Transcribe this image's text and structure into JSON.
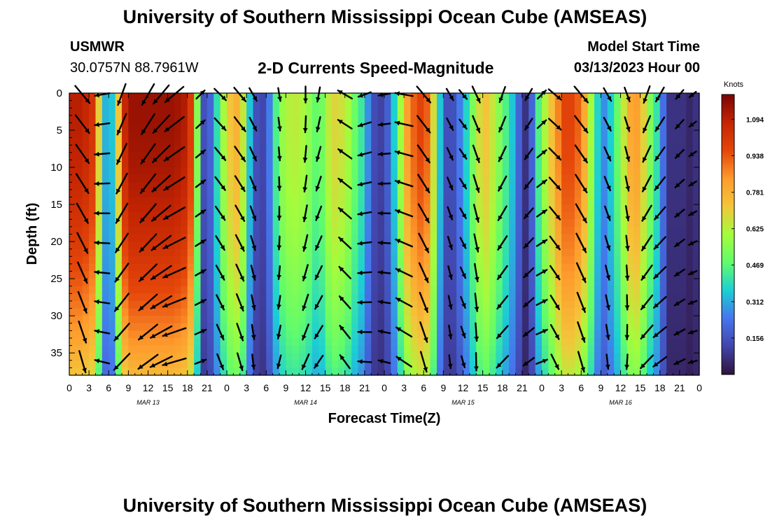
{
  "header": {
    "title": "University of Southern Mississippi Ocean Cube (AMSEAS)",
    "station": "USMWR",
    "coords": "30.0757N  88.7961W",
    "plot_title": "2-D Currents Speed-Magnitude",
    "start_label": "Model Start Time",
    "start_value": "03/13/2023 Hour 00"
  },
  "footer": {
    "title": "University of Southern Mississippi Ocean Cube (AMSEAS)"
  },
  "colors": {
    "low": "#30123b",
    "high": "#7a0403",
    "arrow": "#000000"
  },
  "chart_data": {
    "type": "heatmap",
    "title": "2-D Currents Speed-Magnitude",
    "xlabel": "Forecast Time(Z)",
    "ylabel": "Depth (ft)",
    "colorbar_label": "Knots",
    "xlim": [
      0,
      96
    ],
    "ylim": [
      0,
      38
    ],
    "x_tick_labels": [
      "0",
      "3",
      "6",
      "9",
      "12",
      "15",
      "18",
      "21",
      "0",
      "3",
      "6",
      "9",
      "12",
      "15",
      "18",
      "21",
      "0",
      "3",
      "6",
      "9",
      "12",
      "15",
      "18",
      "21",
      "0",
      "3",
      "6",
      "9",
      "12",
      "15",
      "18",
      "21",
      "0"
    ],
    "y_ticks": [
      0,
      5,
      10,
      15,
      20,
      25,
      30,
      35
    ],
    "day_labels": [
      {
        "label": "MAR 13",
        "hour": 12
      },
      {
        "label": "MAR 14",
        "hour": 36
      },
      {
        "label": "MAR 15",
        "hour": 60
      },
      {
        "label": "MAR 16",
        "hour": 84
      }
    ],
    "colorbar_ticks": [
      "1.094",
      "0.938",
      "0.781",
      "0.625",
      "0.469",
      "0.312",
      "0.156"
    ],
    "colorbar_tick_values": [
      1.094,
      0.938,
      0.781,
      0.625,
      0.469,
      0.312,
      0.156
    ],
    "vmin": 0.0,
    "vmax": 1.2,
    "depths": [
      0,
      4,
      8,
      12,
      16,
      20,
      24,
      28,
      32,
      36
    ],
    "speed_profile": {
      "hours": [
        0,
        2,
        4,
        5,
        6,
        7,
        8,
        9,
        10,
        11,
        12,
        14,
        16,
        18,
        19,
        20,
        21,
        22,
        23,
        24,
        26,
        27,
        28,
        29,
        30,
        31,
        32,
        34,
        36,
        38,
        40,
        42,
        43,
        44,
        45,
        46,
        48,
        50,
        51,
        52,
        54,
        55,
        56,
        57,
        58,
        60,
        62,
        63,
        64,
        66,
        68,
        69,
        70,
        71,
        72,
        74,
        75,
        76,
        78,
        80,
        81,
        82,
        84,
        85,
        86,
        87,
        88,
        90,
        91,
        92,
        93,
        94,
        95,
        96
      ],
      "speeds_knots": [
        1.1,
        1.1,
        1.0,
        0.4,
        0.25,
        0.45,
        1.0,
        1.15,
        1.15,
        1.15,
        1.15,
        1.15,
        1.15,
        1.1,
        0.9,
        0.2,
        0.1,
        0.3,
        0.5,
        0.7,
        0.8,
        0.5,
        0.2,
        0.1,
        0.15,
        0.35,
        0.55,
        0.65,
        0.6,
        0.45,
        0.7,
        0.65,
        0.55,
        0.45,
        0.4,
        0.15,
        0.1,
        0.45,
        0.75,
        0.9,
        1.0,
        0.85,
        0.5,
        0.2,
        0.1,
        0.3,
        0.6,
        0.75,
        0.7,
        0.5,
        0.3,
        0.1,
        0.05,
        0.35,
        0.55,
        0.8,
        0.95,
        1.0,
        0.9,
        0.5,
        0.25,
        0.3,
        0.55,
        0.75,
        0.85,
        0.8,
        0.6,
        0.35,
        0.1,
        0.05,
        0.1,
        0.05,
        0.05,
        0.1
      ]
    },
    "vectors": {
      "hours": [
        2,
        5,
        8,
        12,
        14,
        16,
        20,
        23,
        26,
        28,
        32,
        36,
        38,
        42,
        45,
        48,
        51,
        54,
        58,
        60,
        62,
        66,
        70,
        72,
        74,
        78,
        82,
        85,
        88,
        90,
        93,
        95
      ],
      "directions_deg": [
        140,
        260,
        200,
        210,
        220,
        230,
        45,
        135,
        140,
        150,
        170,
        180,
        190,
        300,
        250,
        260,
        280,
        140,
        150,
        140,
        155,
        200,
        210,
        45,
        130,
        140,
        150,
        160,
        200,
        210,
        220,
        230
      ],
      "magnitudes_knots": [
        1.0,
        0.5,
        1.0,
        1.1,
        1.1,
        1.1,
        0.3,
        0.6,
        0.7,
        0.5,
        0.4,
        0.6,
        0.5,
        0.6,
        0.4,
        0.3,
        0.7,
        0.9,
        0.4,
        0.3,
        0.7,
        0.6,
        0.4,
        0.3,
        0.6,
        0.9,
        0.5,
        0.5,
        0.7,
        0.6,
        0.3,
        0.1
      ]
    }
  }
}
